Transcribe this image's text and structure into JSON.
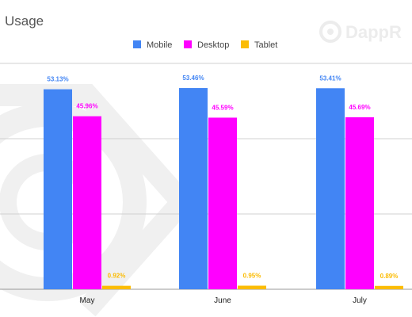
{
  "chart_data": {
    "type": "bar",
    "title": "Usage",
    "categories": [
      "May",
      "June",
      "July"
    ],
    "series": [
      {
        "name": "Mobile",
        "color": "#4285f4",
        "values": [
          53.13,
          53.46,
          53.41
        ],
        "labels": [
          "53.13%",
          "53.46%",
          "53.41%"
        ]
      },
      {
        "name": "Desktop",
        "color": "#ff00ff",
        "values": [
          45.96,
          45.59,
          45.69
        ],
        "labels": [
          "45.96%",
          "45.59%",
          "45.69%"
        ]
      },
      {
        "name": "Tablet",
        "color": "#fbbc04",
        "values": [
          0.92,
          0.95,
          0.89
        ],
        "labels": [
          "0.92%",
          "0.95%",
          "0.89%"
        ]
      }
    ],
    "ylim": [
      0,
      60
    ],
    "grid": true,
    "legend_position": "top-center",
    "xlabel": "",
    "ylabel": ""
  },
  "watermark": {
    "text": "DappR"
  }
}
